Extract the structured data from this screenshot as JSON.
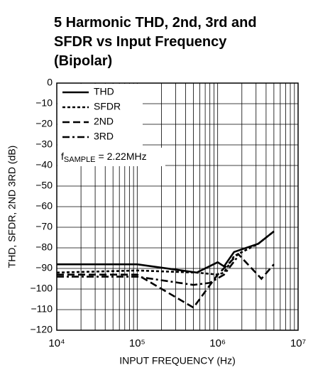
{
  "chart_data": {
    "type": "line",
    "title": [
      "5 Harmonic THD, 2nd, 3rd and",
      "SFDR vs Input Frequency",
      "(Bipolar)"
    ],
    "xlabel": "INPUT FREQUENCY (Hz)",
    "ylabel": "THD, SFDR, 2ND 3RD (dB)",
    "annotation": {
      "symbol": "f",
      "subscript": "SAMPLE",
      "text": "= 2.22MHz"
    },
    "xscale": "log",
    "xlim": [
      10000,
      10000000
    ],
    "xticks": [
      {
        "value": 10000,
        "label": "10⁴"
      },
      {
        "value": 100000,
        "label": "10⁵"
      },
      {
        "value": 1000000,
        "label": "10⁶"
      },
      {
        "value": 10000000,
        "label": "10⁷"
      }
    ],
    "xminorticks": [
      20000,
      30000,
      40000,
      50000,
      60000,
      70000,
      80000,
      90000,
      200000,
      300000,
      400000,
      500000,
      600000,
      700000,
      800000,
      900000,
      2000000,
      3000000,
      4000000,
      5000000,
      6000000,
      7000000,
      8000000,
      9000000
    ],
    "ylim": [
      -120,
      0
    ],
    "yticks": [
      0,
      {
        "value": -10,
        "label": "−10"
      },
      {
        "value": -20,
        "label": "−20"
      },
      {
        "value": -30,
        "label": "−30"
      },
      {
        "value": -40,
        "label": "−40"
      },
      {
        "value": -50,
        "label": "−50"
      },
      {
        "value": -60,
        "label": "−60"
      },
      {
        "value": -70,
        "label": "−70"
      },
      {
        "value": -80,
        "label": "−80"
      },
      {
        "value": -90,
        "label": "−90"
      },
      {
        "value": -100,
        "label": "−100"
      },
      {
        "value": -110,
        "label": "−110"
      },
      {
        "value": -120,
        "label": "−120"
      }
    ],
    "grid": true,
    "legend": "upper left",
    "series": [
      {
        "name": "THD",
        "color": "#000000",
        "line_style": "solid",
        "x": [
          10000,
          100000,
          550000,
          1000000,
          1200000,
          1600000,
          3200000,
          5000000
        ],
        "values": [
          -88,
          -88,
          -92,
          -87,
          -89,
          -82,
          -78,
          -72
        ]
      },
      {
        "name": "SFDR",
        "color": "#000000",
        "line_style": "dotted",
        "x": [
          10000,
          100000,
          550000,
          1000000,
          1200000,
          1600000,
          3200000,
          5000000
        ],
        "values": [
          -92,
          -91,
          -92,
          -93,
          -92,
          -84,
          -78,
          -72
        ]
      },
      {
        "name": "2ND",
        "color": "#000000",
        "line_style": "dashed",
        "x": [
          10000,
          100000,
          500000,
          1000000,
          1800000,
          3500000,
          5000000
        ],
        "values": [
          -93,
          -93,
          -109,
          -93,
          -83,
          -95,
          -88
        ]
      },
      {
        "name": "3RD",
        "color": "#000000",
        "line_style": "dashdot",
        "x": [
          10000,
          100000,
          500000,
          800000,
          1200000,
          1800000
        ],
        "values": [
          -94,
          -94,
          -98,
          -97,
          -93,
          -84
        ]
      }
    ]
  }
}
